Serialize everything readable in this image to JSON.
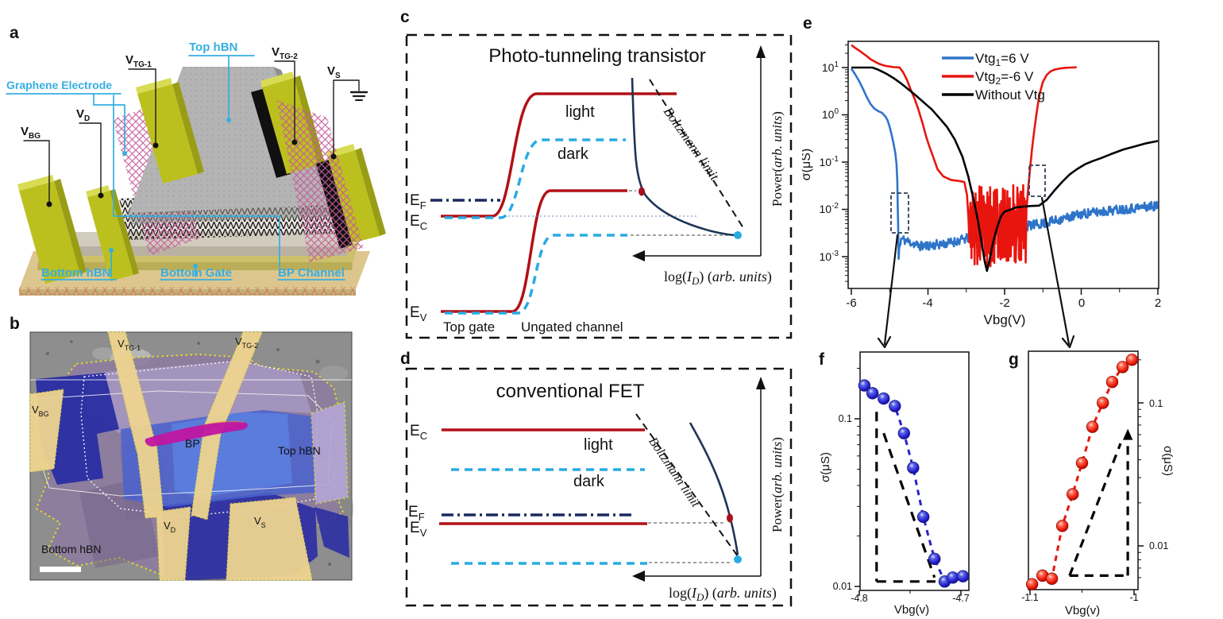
{
  "panel_a": {
    "label": "a",
    "electrode_labels": {
      "vbg": {
        "base": "V",
        "sub": "BG"
      },
      "vd": {
        "base": "V",
        "sub": "D"
      },
      "vtg1": {
        "base": "V",
        "sub": "TG-1"
      },
      "vtg2": {
        "base": "V",
        "sub": "TG-2"
      },
      "vs": {
        "base": "V",
        "sub": "S"
      }
    },
    "layer_labels": {
      "graphene": "Graphene Electrode",
      "top_hbn": "Top hBN",
      "bottom_hbn": "Bottom hBN",
      "bottom_gate": "Bottom Gate",
      "bp_channel": "BP Channel"
    },
    "colors": {
      "electrode": "#bcc01e",
      "hbn": "#b4b4b4",
      "graphene_mesh": "#c75b9b",
      "substrate": "#dcc68e",
      "annotation": "#35aee2"
    }
  },
  "panel_b": {
    "label": "b",
    "labels": {
      "vtg1": {
        "base": "V",
        "sub": "TG-1"
      },
      "vtg2": {
        "base": "V",
        "sub": "TG-2"
      },
      "vbg": {
        "base": "V",
        "sub": "BG"
      },
      "vd": {
        "base": "V",
        "sub": "D"
      },
      "vs": {
        "base": "V",
        "sub": "S"
      },
      "bp": "BP",
      "top_hbn": "Top hBN",
      "bottom_hbn": "Bottom hBN"
    }
  },
  "panel_c": {
    "label": "c",
    "title": "Photo-tunneling transistor",
    "curve_labels": {
      "light": "light",
      "dark": "dark"
    },
    "levels": {
      "ef": {
        "base": "E",
        "sub": "F"
      },
      "ec": {
        "base": "E",
        "sub": "C"
      },
      "ev": {
        "base": "E",
        "sub": "V"
      }
    },
    "regions": {
      "top_gate": "Top gate",
      "ungated": "Ungated channel"
    },
    "boltzmann": "Boltzmann limit",
    "power_label": {
      "pre": "Power(",
      "italic": "arb. units",
      "post": ")"
    },
    "log_label": {
      "p1": "log(",
      "p2": "I",
      "p3": "D",
      "p4": ") (",
      "p5": "arb. units",
      "p6": ")"
    }
  },
  "panel_d": {
    "label": "d",
    "title": "conventional FET",
    "curve_labels": {
      "light": "light",
      "dark": "dark"
    },
    "levels": {
      "ef": {
        "base": "E",
        "sub": "F"
      },
      "ec": {
        "base": "E",
        "sub": "C"
      },
      "ev": {
        "base": "E",
        "sub": "V"
      }
    },
    "boltzmann": "Boltzmann limit",
    "power_label": {
      "pre": "Power(",
      "italic": "arb. units",
      "post": ")"
    },
    "log_label": {
      "p1": "log(",
      "p2": "I",
      "p3": "D",
      "p4": ") (",
      "p5": "arb. units",
      "p6": ")"
    }
  },
  "panel_e": {
    "label": "e",
    "xlabel": "Vbg(V)",
    "ylabel": "σ(μS)",
    "x_tick_labels": [
      "-6",
      "-4",
      "-2",
      "0",
      "2"
    ],
    "y_ticks": [
      {
        "base": "10",
        "exp": "1"
      },
      {
        "base": "10",
        "exp": "0"
      },
      {
        "base": "10",
        "exp": "-1"
      },
      {
        "base": "10",
        "exp": "-2"
      },
      {
        "base": "10",
        "exp": "-3"
      }
    ],
    "legend": [
      {
        "base": "Vtg",
        "sub": "1",
        "rest": "=6 V",
        "color": "#2e74c9"
      },
      {
        "base": "Vtg",
        "sub": "2",
        "rest": "=-6 V",
        "color": "#e8150e"
      },
      {
        "base": "Without Vtg",
        "sub": "",
        "rest": "",
        "color": "#000000"
      }
    ]
  },
  "panel_f": {
    "label": "f",
    "xlabel": "Vbg(v)",
    "ylabel": "σ(μS)",
    "x_tick_labels": [
      "-4.8",
      "-4.7"
    ],
    "y_tick_labels": [
      "0.1",
      "0.01"
    ],
    "point_color": "#2a23c8"
  },
  "panel_g": {
    "label": "g",
    "xlabel": "Vbg(v)",
    "ylabel": "σ(μS)",
    "x_tick_labels": [
      "-1.1",
      "-1"
    ],
    "y_tick_labels": [
      "0.1",
      "0.01"
    ],
    "point_color": "#e8150e"
  },
  "chart_data": {
    "e": {
      "type": "line",
      "title": "",
      "xlabel": "Vbg(V)",
      "ylabel": "σ(μS)",
      "x_range": [
        -6,
        2
      ],
      "y_log_range": [
        0.001,
        10
      ],
      "x_ticks": [
        -6,
        -4,
        -2,
        0,
        2
      ],
      "x_minor_ticks": [
        -5,
        -3,
        -1,
        1
      ],
      "y_tick_exps": [
        1,
        0,
        -1,
        -2,
        -3
      ],
      "legend_position": "top-center",
      "series": [
        {
          "name": "Vtg1=6 V",
          "color": "#2e74c9",
          "anchors": [
            [
              -6,
              9.5
            ],
            [
              -5.9,
              7.2
            ],
            [
              -5.8,
              5.2
            ],
            [
              -5.7,
              3.6
            ],
            [
              -5.6,
              2.4
            ],
            [
              -5.5,
              1.7
            ],
            [
              -5.4,
              1.35
            ],
            [
              -5.3,
              1.2
            ],
            [
              -5.2,
              1.1
            ],
            [
              -5.1,
              0.9
            ],
            [
              -5.05,
              0.75
            ],
            [
              -5.0,
              0.55
            ],
            [
              -4.95,
              0.38
            ],
            [
              -4.9,
              0.25
            ],
            [
              -4.85,
              0.15
            ],
            [
              -4.82,
              0.09
            ],
            [
              -4.8,
              0.04
            ],
            [
              -4.79,
              0.012
            ],
            [
              -4.78,
              0.005
            ],
            [
              -4.765,
              0.0009
            ],
            [
              -4.75,
              0.0016
            ],
            [
              -4.72,
              0.0018
            ]
          ],
          "noise": {
            "from": -4.7,
            "to": 2,
            "step": 0.016,
            "amp": 0.1,
            "seed": 11,
            "mean": [
              [
                -4.7,
                -2.62
              ],
              [
                -4.2,
                -2.78
              ],
              [
                -3.5,
                -2.72
              ],
              [
                -3,
                -2.62
              ],
              [
                -2.5,
                -2.52
              ],
              [
                -2,
                -2.45
              ],
              [
                -1.5,
                -2.36
              ],
              [
                -1,
                -2.3
              ],
              [
                -0.5,
                -2.2
              ],
              [
                0,
                -2.1
              ],
              [
                1,
                -2.0
              ],
              [
                2,
                -1.92
              ]
            ]
          }
        },
        {
          "name": "Vtg2=-6 V",
          "color": "#e8150e",
          "anchors": [
            [
              -6,
              30
            ],
            [
              -5.9,
              26
            ],
            [
              -5.8,
              23
            ],
            [
              -5.7,
              20
            ],
            [
              -5.6,
              17.5
            ],
            [
              -5.5,
              15
            ],
            [
              -5.4,
              13.5
            ],
            [
              -5.3,
              12.2
            ],
            [
              -5.2,
              11.4
            ],
            [
              -5.1,
              10.8
            ],
            [
              -5.0,
              10.5
            ],
            [
              -4.9,
              10.2
            ],
            [
              -4.8,
              10.1
            ],
            [
              -4.74,
              10
            ],
            [
              -4.65,
              8
            ],
            [
              -4.55,
              5.5
            ],
            [
              -4.45,
              3.4
            ],
            [
              -4.35,
              2.2
            ],
            [
              -4.25,
              1.3
            ],
            [
              -4.15,
              0.7
            ],
            [
              -4.05,
              0.35
            ],
            [
              -3.95,
              0.2
            ],
            [
              -3.85,
              0.12
            ],
            [
              -3.75,
              0.07
            ],
            [
              -3.6,
              0.05
            ],
            [
              -3.4,
              0.042
            ],
            [
              -3.2,
              0.04
            ],
            [
              -3.05,
              0.038
            ],
            [
              -2.98,
              0.02
            ],
            [
              -2.94,
              0.006
            ],
            [
              -2.92,
              0.002
            ]
          ],
          "noise": {
            "from": -2.9,
            "to": -1.45,
            "step": 0.009,
            "amp": 0.85,
            "seed": 5,
            "mean": [
              [
                -2.9,
                -2.32
              ],
              [
                -2.4,
                -2.38
              ],
              [
                -1.9,
                -2.32
              ],
              [
                -1.45,
                -2.28
              ]
            ]
          },
          "anchors2": [
            [
              -1.43,
              0.01
            ],
            [
              -1.38,
              0.03
            ],
            [
              -1.33,
              0.08
            ],
            [
              -1.28,
              0.2
            ],
            [
              -1.23,
              0.45
            ],
            [
              -1.18,
              0.9
            ],
            [
              -1.13,
              1.7
            ],
            [
              -1.08,
              2.9
            ],
            [
              -1.0,
              5
            ],
            [
              -0.9,
              7
            ],
            [
              -0.8,
              8.3
            ],
            [
              -0.7,
              9
            ],
            [
              -0.55,
              9.6
            ],
            [
              -0.4,
              9.9
            ],
            [
              -0.25,
              10
            ],
            [
              -0.12,
              10.1
            ]
          ]
        },
        {
          "name": "Without Vtg",
          "color": "#000000",
          "anchors": [
            [
              -6,
              10
            ],
            [
              -5.45,
              10
            ],
            [
              -5.3,
              9
            ],
            [
              -5.1,
              7.5
            ],
            [
              -4.9,
              6
            ],
            [
              -4.7,
              4.6
            ],
            [
              -4.5,
              3.4
            ],
            [
              -4.3,
              2.5
            ],
            [
              -4.1,
              1.8
            ],
            [
              -3.9,
              1.3
            ],
            [
              -3.7,
              0.85
            ],
            [
              -3.5,
              0.55
            ],
            [
              -3.3,
              0.3
            ],
            [
              -3.1,
              0.13
            ],
            [
              -2.95,
              0.05
            ],
            [
              -2.8,
              0.015
            ],
            [
              -2.7,
              0.006
            ],
            [
              -2.6,
              0.002
            ],
            [
              -2.52,
              0.0008
            ],
            [
              -2.46,
              0.0005
            ],
            [
              -2.4,
              0.0008
            ],
            [
              -2.3,
              0.002
            ],
            [
              -2.2,
              0.004
            ],
            [
              -2.1,
              0.007
            ],
            [
              -2.0,
              0.009
            ],
            [
              -1.9,
              0.0095
            ],
            [
              -1.7,
              0.011
            ],
            [
              -1.5,
              0.0115
            ],
            [
              -1.3,
              0.0118
            ],
            [
              -1.1,
              0.012
            ],
            [
              -0.9,
              0.016
            ],
            [
              -0.7,
              0.025
            ],
            [
              -0.5,
              0.038
            ],
            [
              -0.3,
              0.055
            ],
            [
              -0.1,
              0.072
            ],
            [
              0.1,
              0.09
            ],
            [
              0.3,
              0.105
            ],
            [
              0.5,
              0.12
            ],
            [
              0.8,
              0.15
            ],
            [
              1.1,
              0.185
            ],
            [
              1.4,
              0.215
            ],
            [
              1.7,
              0.25
            ],
            [
              2,
              0.28
            ]
          ]
        }
      ]
    },
    "f": {
      "type": "scatter",
      "xlabel": "Vbg(v)",
      "ylabel": "σ(μS)",
      "x_range": [
        -4.8,
        -4.7
      ],
      "y_log_range": [
        0.01,
        0.25
      ],
      "x_ticks": [
        -4.8,
        -4.7
      ],
      "x_minor_ticks": [
        -4.75
      ],
      "y_ticks": [
        0.1,
        0.01
      ],
      "y_minor_ticks": [
        0.02,
        0.03,
        0.04,
        0.05,
        0.06,
        0.07,
        0.08,
        0.09,
        0.2
      ],
      "points": [
        [
          -4.795,
          0.158
        ],
        [
          -4.787,
          0.142
        ],
        [
          -4.776,
          0.132
        ],
        [
          -4.765,
          0.119
        ],
        [
          -4.756,
          0.082
        ],
        [
          -4.747,
          0.051
        ],
        [
          -4.737,
          0.026
        ],
        [
          -4.726,
          0.0146
        ],
        [
          -4.716,
          0.0107
        ],
        [
          -4.708,
          0.0113
        ],
        [
          -4.698,
          0.0115
        ]
      ],
      "triangle": [
        [
          [
            -4.783,
            0.11
          ],
          [
            -4.783,
            0.0107
          ]
        ],
        [
          [
            -4.783,
            0.0107
          ],
          [
            -4.725,
            0.0107
          ]
        ],
        [
          [
            -4.776,
            0.082
          ],
          [
            -4.726,
            0.0113
          ]
        ]
      ]
    },
    "g": {
      "type": "scatter",
      "xlabel": "Vbg(v)",
      "ylabel": "σ(μS)",
      "x_range": [
        -1.1,
        -1.0
      ],
      "y_log_range": [
        0.005,
        0.23
      ],
      "x_ticks": [
        -1.1,
        -1.0
      ],
      "x_minor_ticks": [
        -1.05
      ],
      "y_ticks": [
        0.1,
        0.01
      ],
      "y_minor_ticks": [
        0.006,
        0.007,
        0.008,
        0.009,
        0.02,
        0.03,
        0.04,
        0.05,
        0.06,
        0.07,
        0.08,
        0.09,
        0.2
      ],
      "points": [
        [
          -1.098,
          0.0054
        ],
        [
          -1.088,
          0.0062
        ],
        [
          -1.079,
          0.0059
        ],
        [
          -1.069,
          0.0138
        ],
        [
          -1.059,
          0.023
        ],
        [
          -1.05,
          0.038
        ],
        [
          -1.04,
          0.068
        ],
        [
          -1.03,
          0.1
        ],
        [
          -1.021,
          0.14
        ],
        [
          -1.011,
          0.178
        ],
        [
          -1.002,
          0.2
        ]
      ],
      "triangle": [
        [
          [
            -1.062,
            0.0062
          ],
          [
            -1.006,
            0.0062
          ]
        ],
        [
          [
            -1.062,
            0.0062
          ],
          [
            -1.013,
            0.052
          ]
        ]
      ],
      "arrow_seg": [
        [
          -1.006,
          0.0062
        ],
        [
          -1.006,
          0.058
        ]
      ],
      "arrow_tip": [
        -1.006,
        0.058
      ]
    }
  }
}
